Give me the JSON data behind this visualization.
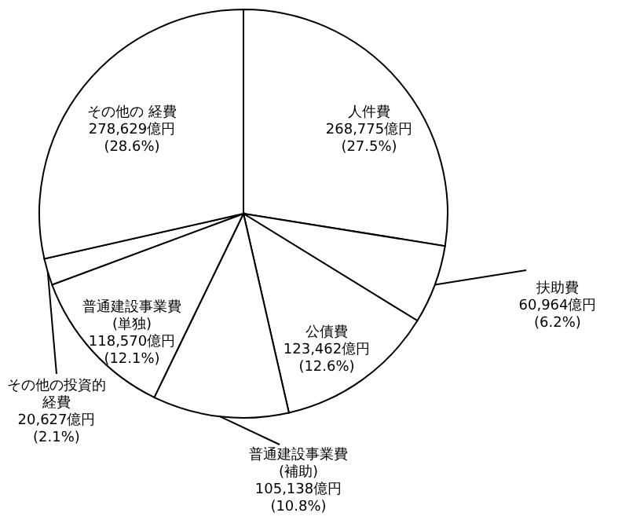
{
  "chart_data": {
    "type": "pie",
    "categories": [
      "人件費",
      "扶助費",
      "公債費",
      "普通建設事業費(補助)",
      "普通建設事業費(単独)",
      "その他の投資的経費",
      "その他の 経費"
    ],
    "values": [
      268775,
      60964,
      123462,
      105138,
      118570,
      20627,
      278629
    ],
    "colors": [
      "#ffffff",
      "#ffffff",
      "#ffffff",
      "#ffffff",
      "#ffffff",
      "#ffffff",
      "#ffffff"
    ],
    "value_labels": [
      "268,775億円\n(27.5%)",
      "60,964億円\n(6.2%)",
      "123,462億円\n(12.6%)",
      "105,138億円\n(10.8%)",
      "118,570億円\n(12.1%)",
      "20,627億円\n(2.1%)",
      "278,629億円\n(28.6%)"
    ]
  }
}
